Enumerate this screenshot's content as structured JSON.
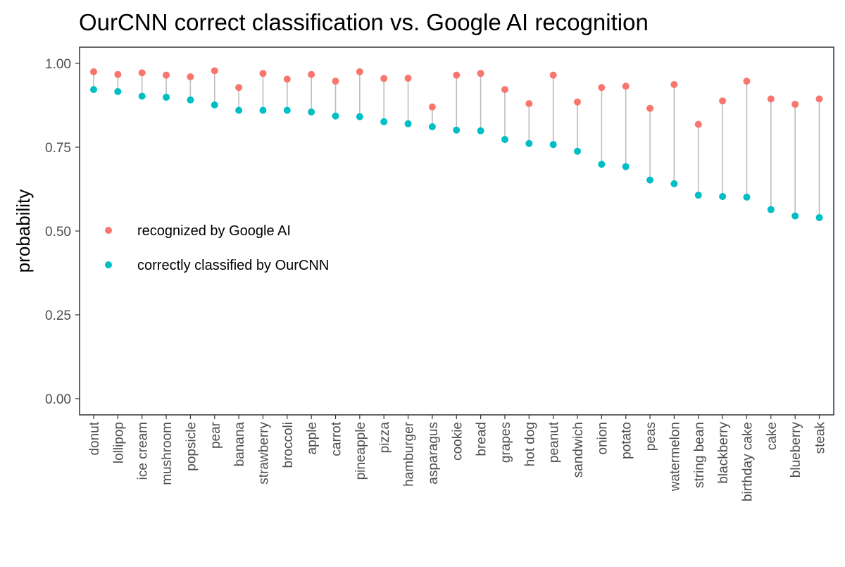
{
  "chart_data": {
    "type": "scatter",
    "title": "OurCNN correct classification vs. Google AI recognition",
    "xlabel": "",
    "ylabel": "probability",
    "ylim": [
      0,
      1
    ],
    "yticks": [
      "0.00",
      "0.25",
      "0.50",
      "0.75",
      "1.00"
    ],
    "grid": false,
    "legend_position": "left-middle",
    "categories": [
      "donut",
      "lollipop",
      "ice cream",
      "mushroom",
      "popsicle",
      "pear",
      "banana",
      "strawberry",
      "broccoli",
      "apple",
      "carrot",
      "pineapple",
      "pizza",
      "hamburger",
      "asparagus",
      "cookie",
      "bread",
      "grapes",
      "hot dog",
      "peanut",
      "sandwich",
      "onion",
      "potato",
      "peas",
      "watermelon",
      "string bean",
      "blackberry",
      "birthday cake",
      "cake",
      "blueberry",
      "steak"
    ],
    "series": [
      {
        "name": "recognized by Google AI",
        "color": "#f8766d",
        "values": [
          0.975,
          0.967,
          0.972,
          0.965,
          0.96,
          0.978,
          0.928,
          0.97,
          0.953,
          0.967,
          0.947,
          0.975,
          0.955,
          0.956,
          0.87,
          0.965,
          0.97,
          0.922,
          0.88,
          0.965,
          0.885,
          0.928,
          0.932,
          0.866,
          0.937,
          0.818,
          0.888,
          0.947,
          0.894,
          0.878,
          0.894
        ]
      },
      {
        "name": "correctly classified by OurCNN",
        "color": "#00bfc4",
        "values": [
          0.922,
          0.916,
          0.902,
          0.899,
          0.891,
          0.876,
          0.86,
          0.86,
          0.86,
          0.855,
          0.843,
          0.841,
          0.826,
          0.82,
          0.811,
          0.801,
          0.799,
          0.773,
          0.761,
          0.758,
          0.738,
          0.699,
          0.692,
          0.652,
          0.641,
          0.607,
          0.603,
          0.601,
          0.564,
          0.545,
          0.54
        ]
      }
    ],
    "segment_color": "#bdbdbd"
  }
}
